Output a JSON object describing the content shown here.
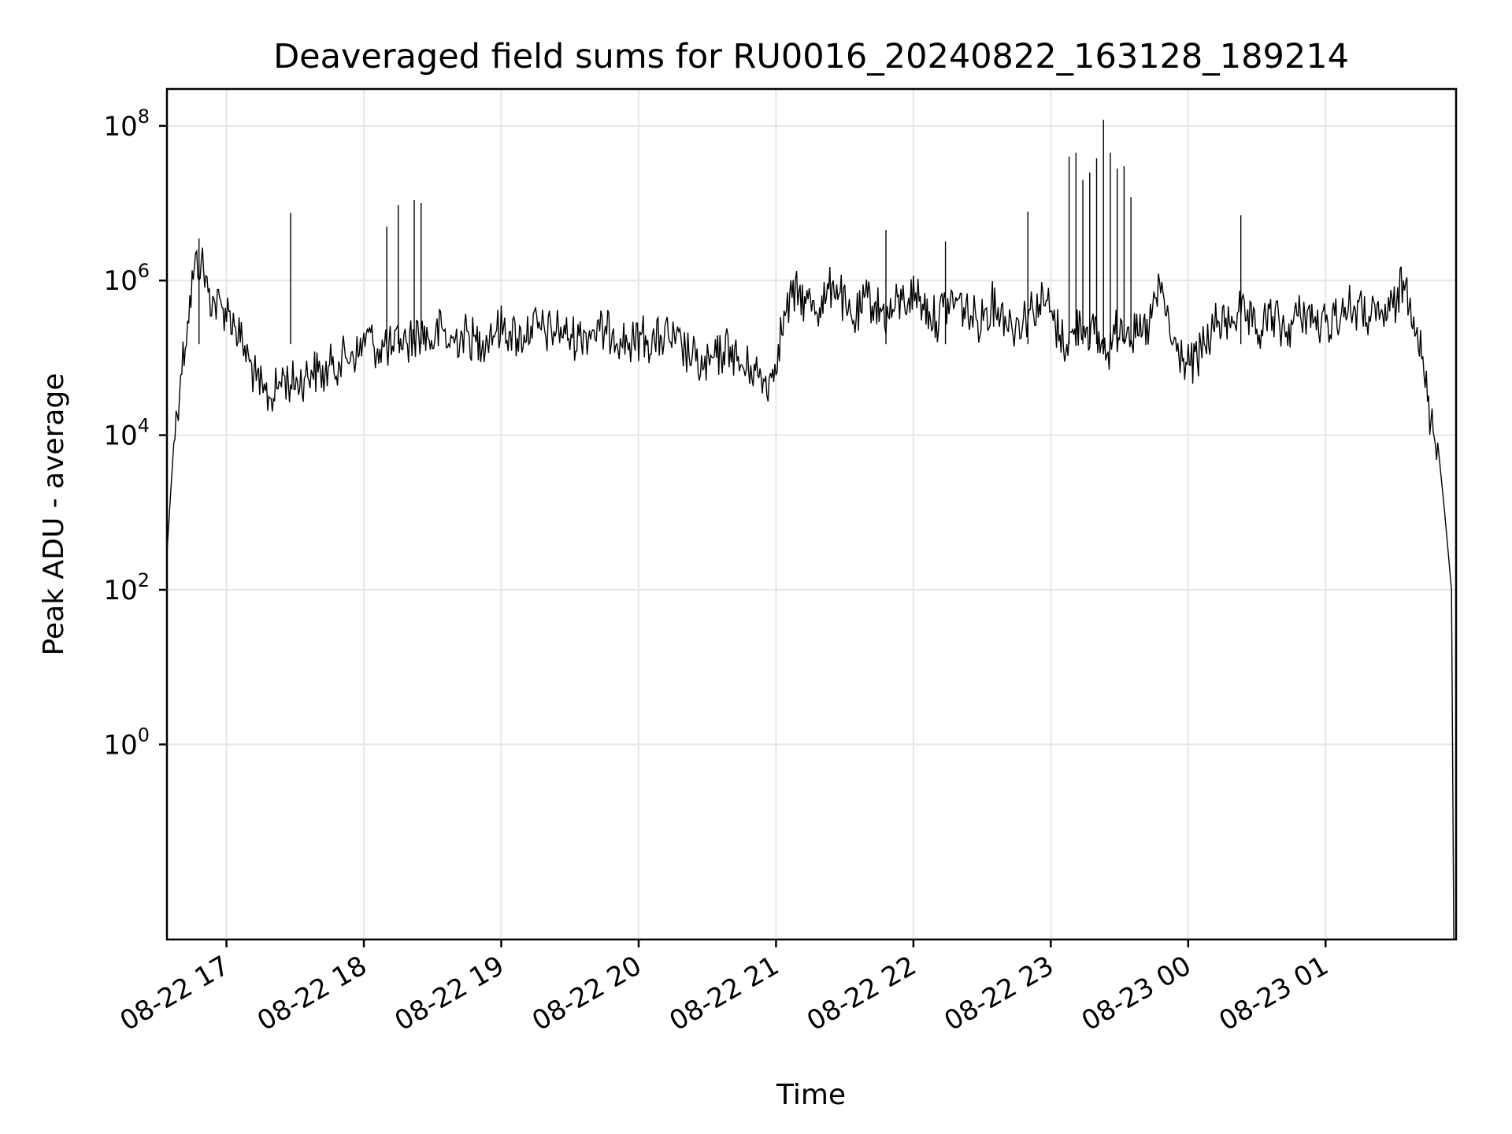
{
  "chart_data": {
    "type": "line",
    "title": "Deaveraged field sums for RU0016_20240822_163128_189214",
    "xlabel": "Time",
    "ylabel": "Peak ADU - average",
    "xlim": [
      "2024-08-22 16:34",
      "2024-08-23 01:57"
    ],
    "ylim": [
      0.003,
      300000000.0
    ],
    "yscale": "log",
    "grid": true,
    "x_ticks": [
      {
        "label": "08-22 17",
        "value": "2024-08-22 17:00"
      },
      {
        "label": "08-22 18",
        "value": "2024-08-22 18:00"
      },
      {
        "label": "08-22 19",
        "value": "2024-08-22 19:00"
      },
      {
        "label": "08-22 20",
        "value": "2024-08-22 20:00"
      },
      {
        "label": "08-22 21",
        "value": "2024-08-22 21:00"
      },
      {
        "label": "08-22 22",
        "value": "2024-08-22 22:00"
      },
      {
        "label": "08-22 23",
        "value": "2024-08-22 23:00"
      },
      {
        "label": "08-23 00",
        "value": "2024-08-23 00:00"
      },
      {
        "label": "08-23 01",
        "value": "2024-08-23 01:00"
      }
    ],
    "y_ticks": [
      {
        "base": "10",
        "exp": "0",
        "value": 1
      },
      {
        "base": "10",
        "exp": "2",
        "value": 100
      },
      {
        "base": "10",
        "exp": "4",
        "value": 10000
      },
      {
        "base": "10",
        "exp": "6",
        "value": 1000000
      },
      {
        "base": "10",
        "exp": "8",
        "value": 100000000
      }
    ],
    "series": [
      {
        "color": "#000000",
        "x": [
          "2024-08-22 16:34",
          "2024-08-22 16:37",
          "2024-08-22 16:40",
          "2024-08-22 16:43",
          "2024-08-22 16:46",
          "2024-08-22 16:49",
          "2024-08-22 16:52",
          "2024-08-22 16:55",
          "2024-08-22 16:58",
          "2024-08-22 17:01",
          "2024-08-22 17:04",
          "2024-08-22 17:07",
          "2024-08-22 17:10",
          "2024-08-22 17:13",
          "2024-08-22 17:16",
          "2024-08-22 17:19",
          "2024-08-22 17:22",
          "2024-08-22 17:25",
          "2024-08-22 17:28",
          "2024-08-22 17:31",
          "2024-08-22 17:34",
          "2024-08-22 17:37",
          "2024-08-22 17:40",
          "2024-08-22 17:43",
          "2024-08-22 17:46",
          "2024-08-22 17:49",
          "2024-08-22 17:52",
          "2024-08-22 17:55",
          "2024-08-22 17:58",
          "2024-08-22 18:01",
          "2024-08-22 18:04",
          "2024-08-22 18:07",
          "2024-08-22 18:10",
          "2024-08-22 18:13",
          "2024-08-22 18:16",
          "2024-08-22 18:19",
          "2024-08-22 18:22",
          "2024-08-22 18:25",
          "2024-08-22 18:28",
          "2024-08-22 18:31",
          "2024-08-22 18:34",
          "2024-08-22 18:37",
          "2024-08-22 18:40",
          "2024-08-22 18:43",
          "2024-08-22 18:46",
          "2024-08-22 18:49",
          "2024-08-22 18:52",
          "2024-08-22 18:55",
          "2024-08-22 18:58",
          "2024-08-22 19:01",
          "2024-08-22 19:04",
          "2024-08-22 19:07",
          "2024-08-22 19:10",
          "2024-08-22 19:13",
          "2024-08-22 19:16",
          "2024-08-22 19:19",
          "2024-08-22 19:22",
          "2024-08-22 19:25",
          "2024-08-22 19:28",
          "2024-08-22 19:31",
          "2024-08-22 19:34",
          "2024-08-22 19:37",
          "2024-08-22 19:40",
          "2024-08-22 19:43",
          "2024-08-22 19:46",
          "2024-08-22 19:49",
          "2024-08-22 19:52",
          "2024-08-22 19:55",
          "2024-08-22 19:58",
          "2024-08-22 20:01",
          "2024-08-22 20:04",
          "2024-08-22 20:07",
          "2024-08-22 20:10",
          "2024-08-22 20:13",
          "2024-08-22 20:16",
          "2024-08-22 20:19",
          "2024-08-22 20:22",
          "2024-08-22 20:25",
          "2024-08-22 20:28",
          "2024-08-22 20:31",
          "2024-08-22 20:34",
          "2024-08-22 20:37",
          "2024-08-22 20:40",
          "2024-08-22 20:43",
          "2024-08-22 20:46",
          "2024-08-22 20:49",
          "2024-08-22 20:52",
          "2024-08-22 20:55",
          "2024-08-22 20:58",
          "2024-08-22 21:01",
          "2024-08-22 21:04",
          "2024-08-22 21:07",
          "2024-08-22 21:10",
          "2024-08-22 21:13",
          "2024-08-22 21:16",
          "2024-08-22 21:19",
          "2024-08-22 21:22",
          "2024-08-22 21:25",
          "2024-08-22 21:28",
          "2024-08-22 21:31",
          "2024-08-22 21:34",
          "2024-08-22 21:37",
          "2024-08-22 21:40",
          "2024-08-22 21:43",
          "2024-08-22 21:46",
          "2024-08-22 21:49",
          "2024-08-22 21:52",
          "2024-08-22 21:55",
          "2024-08-22 21:58",
          "2024-08-22 22:01",
          "2024-08-22 22:04",
          "2024-08-22 22:07",
          "2024-08-22 22:10",
          "2024-08-22 22:13",
          "2024-08-22 22:16",
          "2024-08-22 22:19",
          "2024-08-22 22:22",
          "2024-08-22 22:25",
          "2024-08-22 22:28",
          "2024-08-22 22:31",
          "2024-08-22 22:34",
          "2024-08-22 22:37",
          "2024-08-22 22:40",
          "2024-08-22 22:43",
          "2024-08-22 22:46",
          "2024-08-22 22:49",
          "2024-08-22 22:52",
          "2024-08-22 22:55",
          "2024-08-22 22:58",
          "2024-08-22 23:01",
          "2024-08-22 23:04",
          "2024-08-22 23:07",
          "2024-08-22 23:10",
          "2024-08-22 23:13",
          "2024-08-22 23:16",
          "2024-08-22 23:19",
          "2024-08-22 23:22",
          "2024-08-22 23:25",
          "2024-08-22 23:28",
          "2024-08-22 23:31",
          "2024-08-22 23:34",
          "2024-08-22 23:37",
          "2024-08-22 23:40",
          "2024-08-22 23:43",
          "2024-08-22 23:46",
          "2024-08-22 23:49",
          "2024-08-22 23:52",
          "2024-08-22 23:55",
          "2024-08-22 23:58",
          "2024-08-23 00:01",
          "2024-08-23 00:04",
          "2024-08-23 00:07",
          "2024-08-23 00:10",
          "2024-08-23 00:13",
          "2024-08-23 00:16",
          "2024-08-23 00:19",
          "2024-08-23 00:22",
          "2024-08-23 00:25",
          "2024-08-23 00:28",
          "2024-08-23 00:31",
          "2024-08-23 00:34",
          "2024-08-23 00:37",
          "2024-08-23 00:40",
          "2024-08-23 00:43",
          "2024-08-23 00:46",
          "2024-08-23 00:49",
          "2024-08-23 00:52",
          "2024-08-23 00:55",
          "2024-08-23 00:58",
          "2024-08-23 01:01",
          "2024-08-23 01:04",
          "2024-08-23 01:07",
          "2024-08-23 01:10",
          "2024-08-23 01:13",
          "2024-08-23 01:16",
          "2024-08-23 01:19",
          "2024-08-23 01:22",
          "2024-08-23 01:25",
          "2024-08-23 01:28",
          "2024-08-23 01:31",
          "2024-08-23 01:34",
          "2024-08-23 01:37",
          "2024-08-23 01:40",
          "2024-08-23 01:43",
          "2024-08-23 01:46",
          "2024-08-23 01:49",
          "2024-08-23 01:52",
          "2024-08-23 01:55",
          "2024-08-23 01:56"
        ],
        "y": [
          300,
          8000,
          60000,
          300000,
          1500000,
          1800000,
          700000,
          500000,
          450000,
          400000,
          250000,
          150000,
          90000,
          50000,
          35000,
          30000,
          40000,
          60000,
          45000,
          50000,
          55000,
          70000,
          65000,
          60000,
          80000,
          90000,
          100000,
          120000,
          110000,
          200000,
          150000,
          130000,
          140000,
          120000,
          180000,
          150000,
          200000,
          220000,
          180000,
          170000,
          250000,
          150000,
          180000,
          200000,
          190000,
          160000,
          170000,
          210000,
          230000,
          250000,
          220000,
          180000,
          200000,
          260000,
          240000,
          220000,
          210000,
          250000,
          200000,
          180000,
          190000,
          210000,
          230000,
          220000,
          200000,
          240000,
          180000,
          160000,
          150000,
          200000,
          170000,
          160000,
          180000,
          190000,
          150000,
          130000,
          110000,
          90000,
          70000,
          80000,
          100000,
          120000,
          140000,
          90000,
          70000,
          80000,
          60000,
          50000,
          55000,
          150000,
          350000,
          600000,
          700000,
          500000,
          550000,
          450000,
          600000,
          1000000,
          700000,
          350000,
          300000,
          400000,
          600000,
          500000,
          400000,
          350000,
          450000,
          550000,
          600000,
          700000,
          500000,
          400000,
          300000,
          450000,
          500000,
          550000,
          450000,
          350000,
          300000,
          400000,
          500000,
          450000,
          350000,
          250000,
          300000,
          350000,
          450000,
          500000,
          550000,
          300000,
          200000,
          150000,
          200000,
          300000,
          250000,
          200000,
          150000,
          120000,
          200000,
          300000,
          250000,
          180000,
          200000,
          250000,
          600000,
          700000,
          200000,
          120000,
          100000,
          80000,
          90000,
          150000,
          200000,
          300000,
          250000,
          350000,
          400000,
          300000,
          250000,
          200000,
          300000,
          350000,
          250000,
          220000,
          300000,
          350000,
          400000,
          300000,
          250000,
          280000,
          350000,
          400000,
          450000,
          420000,
          380000,
          350000,
          300000,
          350000,
          400000,
          500000,
          1000000,
          600000,
          250000,
          60000,
          15000,
          8000,
          1000,
          100,
          0.003
        ],
        "spikes": [
          {
            "x": "2024-08-22 16:48",
            "y": 3500000
          },
          {
            "x": "2024-08-22 17:28",
            "y": 7500000
          },
          {
            "x": "2024-08-22 18:10",
            "y": 5000000
          },
          {
            "x": "2024-08-22 18:15",
            "y": 9500000
          },
          {
            "x": "2024-08-22 18:22",
            "y": 11000000
          },
          {
            "x": "2024-08-22 18:25",
            "y": 10000000
          },
          {
            "x": "2024-08-22 21:48",
            "y": 4500000
          },
          {
            "x": "2024-08-22 22:14",
            "y": 3200000
          },
          {
            "x": "2024-08-22 22:50",
            "y": 7800000
          },
          {
            "x": "2024-08-22 23:08",
            "y": 40000000
          },
          {
            "x": "2024-08-22 23:11",
            "y": 45000000
          },
          {
            "x": "2024-08-22 23:14",
            "y": 20000000
          },
          {
            "x": "2024-08-22 23:17",
            "y": 25000000
          },
          {
            "x": "2024-08-22 23:20",
            "y": 38000000
          },
          {
            "x": "2024-08-22 23:23",
            "y": 120000000
          },
          {
            "x": "2024-08-22 23:26",
            "y": 45000000
          },
          {
            "x": "2024-08-22 23:29",
            "y": 28000000
          },
          {
            "x": "2024-08-22 23:32",
            "y": 30000000
          },
          {
            "x": "2024-08-22 23:35",
            "y": 12000000
          },
          {
            "x": "2024-08-23 00:23",
            "y": 7000000
          }
        ]
      }
    ]
  }
}
